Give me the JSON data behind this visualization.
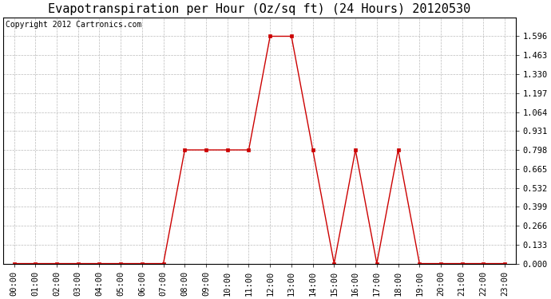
{
  "title": "Evapotranspiration per Hour (Oz/sq ft) (24 Hours) 20120530",
  "copyright_text": "Copyright 2012 Cartronics.com",
  "x_labels": [
    "00:00",
    "01:00",
    "02:00",
    "03:00",
    "04:00",
    "05:00",
    "06:00",
    "07:00",
    "08:00",
    "09:00",
    "10:00",
    "11:00",
    "12:00",
    "13:00",
    "14:00",
    "15:00",
    "16:00",
    "17:00",
    "18:00",
    "19:00",
    "20:00",
    "21:00",
    "22:00",
    "23:00"
  ],
  "y_values": [
    0.0,
    0.0,
    0.0,
    0.0,
    0.0,
    0.0,
    0.0,
    0.0,
    0.798,
    0.798,
    0.798,
    0.798,
    1.596,
    1.596,
    0.798,
    0.0,
    0.798,
    0.0,
    0.798,
    0.0,
    0.0,
    0.0,
    0.0,
    0.0
  ],
  "y_ticks": [
    0.0,
    0.133,
    0.266,
    0.399,
    0.532,
    0.665,
    0.798,
    0.931,
    1.064,
    1.197,
    1.33,
    1.463,
    1.596
  ],
  "ylim": [
    0.0,
    1.729
  ],
  "line_color": "#cc0000",
  "marker": "s",
  "marker_size": 3,
  "marker_color": "#cc0000",
  "bg_color": "#ffffff",
  "plot_bg_color": "#ffffff",
  "grid_color": "#bbbbbb",
  "title_fontsize": 11,
  "tick_fontsize": 7.5,
  "copyright_fontsize": 7
}
